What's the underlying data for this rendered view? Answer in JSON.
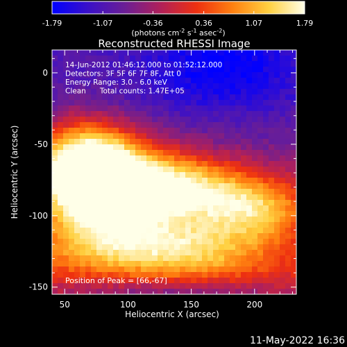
{
  "colorbar": {
    "ticks": [
      "-1.79",
      "-1.07",
      "-0.36",
      "0.36",
      "1.07",
      "1.79"
    ],
    "units_parts": [
      "(photons cm",
      "-2",
      " s",
      "-1",
      " asec",
      "-2",
      ")"
    ],
    "colors": [
      "#0000ff",
      "#3a10c8",
      "#6a1e96",
      "#b0205a",
      "#ee3010",
      "#ff8010",
      "#ffd040",
      "#ffffe8"
    ]
  },
  "chart_data": {
    "type": "heatmap",
    "title": "Reconstructed RHESSI Image",
    "xlabel": "Heliocentric X (arcsec)",
    "ylabel": "Heliocentric Y (arcsec)",
    "xlim": [
      40,
      233
    ],
    "ylim": [
      -155,
      16
    ],
    "xticks": [
      50,
      100,
      150,
      200
    ],
    "yticks": [
      0,
      -50,
      -100,
      -150
    ],
    "clim": [
      -1.79,
      1.79
    ],
    "peak": [
      66,
      -67
    ],
    "annotations": [
      "14-Jun-2012 01:46:12.000 to 01:52:12.000",
      "Detectors: 3F 5F 6F 7F 8F, Att 0",
      "Energy Range: 3.0 - 6.0 keV",
      "Clean      Total counts: 1.47E+05"
    ],
    "peak_text": "Position of Peak = [66,-67]"
  },
  "footer": {
    "timestamp": "11-May-2022 16:36"
  }
}
